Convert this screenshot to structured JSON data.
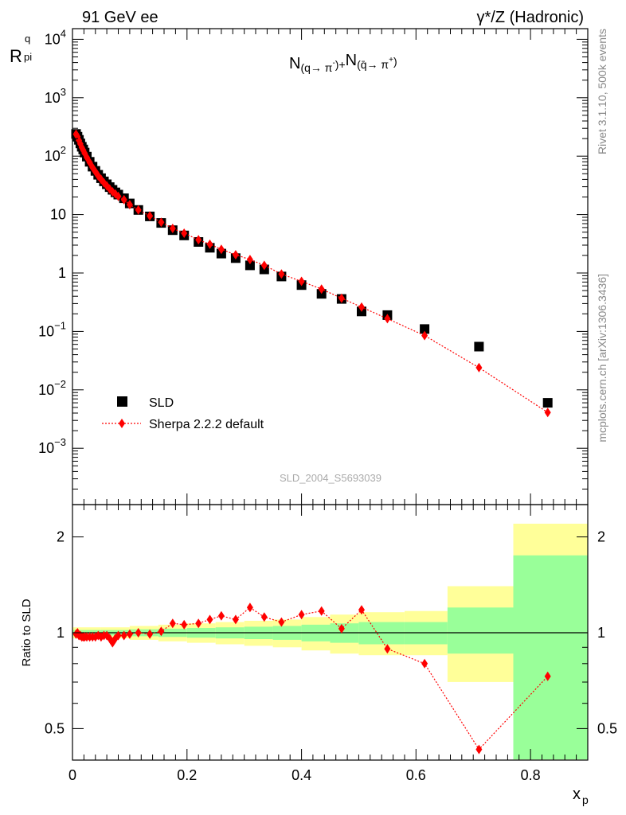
{
  "header": {
    "energy_label": "91 GeV ee",
    "process_label": "γ*/Z (Hadronic)"
  },
  "side_labels": {
    "rivet": "Rivet 3.1.10,  500k events",
    "mcplots": "mcplots.cern.ch [arXiv:1306.3436]"
  },
  "chart_data": [
    {
      "type": "scatter",
      "title": "N(q → π⁻)+N(q̄ → π⁺)",
      "ylabel_main": "R",
      "ylabel_sup": "q",
      "ylabel_sub": "pi",
      "xlabel": "x",
      "xlabel_sub": "p",
      "y_scale": "log",
      "xlim": [
        0,
        0.9
      ],
      "ylim": [
        0.0002,
        20000
      ],
      "watermark": "SLD_2004_S5693039",
      "y_ticks": [
        {
          "v": 10000,
          "base": "10",
          "exp": "4"
        },
        {
          "v": 1000,
          "base": "10",
          "exp": "3"
        },
        {
          "v": 100,
          "base": "10",
          "exp": "2"
        },
        {
          "v": 10,
          "base": "10",
          "exp": ""
        },
        {
          "v": 1,
          "base": "1",
          "exp": ""
        },
        {
          "v": 0.1,
          "base": "10",
          "exp": "−1"
        },
        {
          "v": 0.01,
          "base": "10",
          "exp": "−2"
        },
        {
          "v": 0.001,
          "base": "10",
          "exp": "−3"
        }
      ],
      "legend_position": "bottom-left",
      "series": [
        {
          "name": "SLD",
          "marker": "square",
          "color": "#000000",
          "x": [
            0.0063,
            0.0088,
            0.0113,
            0.0138,
            0.0163,
            0.0188,
            0.0213,
            0.025,
            0.03,
            0.035,
            0.04,
            0.045,
            0.05,
            0.055,
            0.06,
            0.065,
            0.07,
            0.075,
            0.08,
            0.09,
            0.1,
            0.115,
            0.135,
            0.155,
            0.175,
            0.195,
            0.22,
            0.24,
            0.26,
            0.285,
            0.31,
            0.335,
            0.365,
            0.4,
            0.435,
            0.47,
            0.505,
            0.55,
            0.615,
            0.71,
            0.83
          ],
          "y": [
            240,
            215,
            190,
            165,
            145,
            130,
            115,
            98,
            80,
            66,
            56,
            48,
            42,
            37,
            33,
            29.5,
            26.5,
            24,
            22,
            19,
            15.5,
            12,
            9.3,
            7.2,
            5.4,
            4.4,
            3.4,
            2.7,
            2.15,
            1.8,
            1.35,
            1.15,
            0.87,
            0.62,
            0.44,
            0.36,
            0.22,
            0.19,
            0.11,
            0.055,
            0.006
          ]
        },
        {
          "name": "Sherpa 2.2.2 default",
          "marker": "diamond",
          "line": "dotted",
          "color": "#ff0000",
          "x": [
            0.0063,
            0.0088,
            0.0113,
            0.0138,
            0.0163,
            0.0188,
            0.0213,
            0.025,
            0.03,
            0.035,
            0.04,
            0.045,
            0.05,
            0.055,
            0.06,
            0.065,
            0.07,
            0.075,
            0.08,
            0.09,
            0.1,
            0.115,
            0.135,
            0.155,
            0.175,
            0.195,
            0.22,
            0.24,
            0.26,
            0.285,
            0.31,
            0.335,
            0.365,
            0.4,
            0.435,
            0.47,
            0.505,
            0.55,
            0.615,
            0.71,
            0.83
          ],
          "y": [
            238,
            215,
            186,
            162,
            141,
            126,
            112,
            95,
            78,
            64,
            54,
            46,
            40,
            35,
            31,
            27.5,
            24.5,
            22.5,
            20.5,
            18,
            14.8,
            12,
            9.5,
            7.4,
            5.8,
            4.8,
            3.7,
            3.1,
            2.55,
            2.05,
            1.7,
            1.35,
            0.96,
            0.72,
            0.53,
            0.37,
            0.26,
            0.165,
            0.085,
            0.024,
            0.0041
          ]
        }
      ]
    },
    {
      "type": "scatter",
      "ylabel": "Ratio to SLD",
      "xlim": [
        0,
        0.9
      ],
      "ylim": [
        0.4,
        2.3
      ],
      "x_ticks": [
        "0",
        "0.2",
        "0.4",
        "0.6",
        "0.8"
      ],
      "y_ticks": [
        "0.5",
        "1",
        "2"
      ],
      "bands": [
        {
          "x0": 0,
          "x1": 0.05,
          "y1": [
            0.98,
            1.02
          ],
          "y2": [
            0.96,
            1.04
          ]
        },
        {
          "x0": 0.05,
          "x1": 0.1,
          "y1": [
            0.98,
            1.02
          ],
          "y2": [
            0.96,
            1.04
          ]
        },
        {
          "x0": 0.1,
          "x1": 0.15,
          "y1": [
            0.975,
            1.025
          ],
          "y2": [
            0.95,
            1.05
          ]
        },
        {
          "x0": 0.15,
          "x1": 0.2,
          "y1": [
            0.97,
            1.03
          ],
          "y2": [
            0.94,
            1.06
          ]
        },
        {
          "x0": 0.2,
          "x1": 0.25,
          "y1": [
            0.965,
            1.035
          ],
          "y2": [
            0.93,
            1.07
          ]
        },
        {
          "x0": 0.25,
          "x1": 0.3,
          "y1": [
            0.96,
            1.04
          ],
          "y2": [
            0.92,
            1.08
          ]
        },
        {
          "x0": 0.3,
          "x1": 0.35,
          "y1": [
            0.955,
            1.045
          ],
          "y2": [
            0.91,
            1.09
          ]
        },
        {
          "x0": 0.35,
          "x1": 0.4,
          "y1": [
            0.95,
            1.05
          ],
          "y2": [
            0.9,
            1.1
          ]
        },
        {
          "x0": 0.4,
          "x1": 0.45,
          "y1": [
            0.94,
            1.06
          ],
          "y2": [
            0.88,
            1.12
          ]
        },
        {
          "x0": 0.45,
          "x1": 0.5,
          "y1": [
            0.93,
            1.07
          ],
          "y2": [
            0.86,
            1.14
          ]
        },
        {
          "x0": 0.5,
          "x1": 0.58,
          "y1": [
            0.92,
            1.08
          ],
          "y2": [
            0.85,
            1.16
          ]
        },
        {
          "x0": 0.58,
          "x1": 0.655,
          "y1": [
            0.92,
            1.08
          ],
          "y2": [
            0.85,
            1.17
          ]
        },
        {
          "x0": 0.655,
          "x1": 0.77,
          "y1": [
            0.86,
            1.2
          ],
          "y2": [
            0.7,
            1.4
          ]
        },
        {
          "x0": 0.77,
          "x1": 0.9,
          "y1": [
            0.4,
            1.75
          ],
          "y2": [
            0.4,
            2.2
          ]
        }
      ],
      "series": [
        {
          "name": "Sherpa 2.2.2 default",
          "marker": "diamond",
          "line": "dotted",
          "color": "#ff0000",
          "x": [
            0.0063,
            0.0088,
            0.0113,
            0.0138,
            0.0163,
            0.0188,
            0.0213,
            0.025,
            0.03,
            0.035,
            0.04,
            0.045,
            0.05,
            0.055,
            0.06,
            0.065,
            0.07,
            0.075,
            0.08,
            0.09,
            0.1,
            0.115,
            0.135,
            0.155,
            0.175,
            0.195,
            0.22,
            0.24,
            0.26,
            0.285,
            0.31,
            0.335,
            0.365,
            0.4,
            0.435,
            0.47,
            0.505,
            0.55,
            0.615,
            0.71,
            0.83
          ],
          "y": [
            0.99,
            1.0,
            0.98,
            0.98,
            0.97,
            0.97,
            0.97,
            0.97,
            0.97,
            0.97,
            0.97,
            0.98,
            0.97,
            0.98,
            0.98,
            0.96,
            0.93,
            0.96,
            0.98,
            0.98,
            0.99,
            1.0,
            0.99,
            1.01,
            1.07,
            1.06,
            1.07,
            1.1,
            1.13,
            1.1,
            1.2,
            1.12,
            1.08,
            1.14,
            1.17,
            1.03,
            1.18,
            0.89,
            0.8,
            0.43,
            0.73
          ]
        }
      ]
    }
  ]
}
